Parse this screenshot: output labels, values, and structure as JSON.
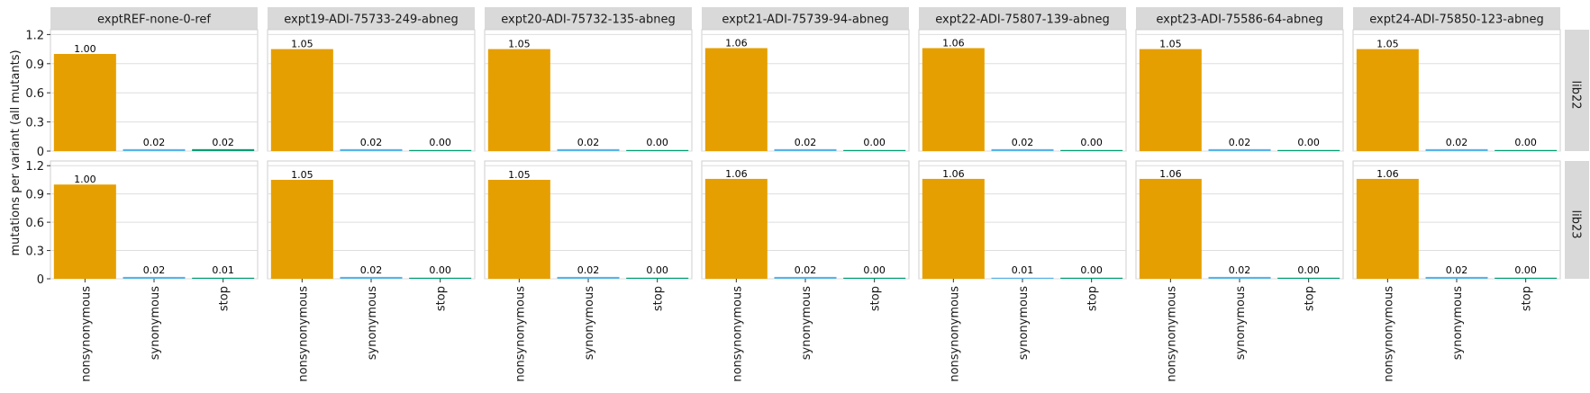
{
  "chart_data": {
    "type": "bar",
    "ylabel": "mutations per variant (all mutants)",
    "xlabel": "",
    "ylim": [
      0,
      1.25
    ],
    "yticks": [
      0,
      0.3,
      0.6,
      0.9,
      1.2
    ],
    "ytick_labels": [
      "0",
      "0.3",
      "0.6",
      "0.9",
      "1.2"
    ],
    "categories": [
      "nonsynonymous",
      "synonymous",
      "stop"
    ],
    "colors": {
      "nonsynonymous": "#E69F00",
      "synonymous": "#56B4E9",
      "stop": "#009E73"
    },
    "grid": true,
    "columns": [
      "exptREF-none-0-ref",
      "expt19-ADI-75733-249-abneg",
      "expt20-ADI-75732-135-abneg",
      "expt21-ADI-75739-94-abneg",
      "expt22-ADI-75807-139-abneg",
      "expt23-ADI-75586-64-abneg",
      "expt24-ADI-75850-123-abneg"
    ],
    "rows": [
      "lib22",
      "lib23"
    ],
    "values": [
      [
        [
          1.0,
          0.02,
          0.02
        ],
        [
          1.05,
          0.02,
          0.0
        ],
        [
          1.05,
          0.02,
          0.0
        ],
        [
          1.06,
          0.02,
          0.0
        ],
        [
          1.06,
          0.02,
          0.0
        ],
        [
          1.05,
          0.02,
          0.0
        ],
        [
          1.05,
          0.02,
          0.0
        ]
      ],
      [
        [
          1.0,
          0.02,
          0.01
        ],
        [
          1.05,
          0.02,
          0.0
        ],
        [
          1.05,
          0.02,
          0.0
        ],
        [
          1.06,
          0.02,
          0.0
        ],
        [
          1.06,
          0.01,
          0.0
        ],
        [
          1.06,
          0.02,
          0.0
        ],
        [
          1.06,
          0.02,
          0.0
        ]
      ]
    ],
    "value_labels": [
      [
        [
          "1.00",
          "0.02",
          "0.02"
        ],
        [
          "1.05",
          "0.02",
          "0.00"
        ],
        [
          "1.05",
          "0.02",
          "0.00"
        ],
        [
          "1.06",
          "0.02",
          "0.00"
        ],
        [
          "1.06",
          "0.02",
          "0.00"
        ],
        [
          "1.05",
          "0.02",
          "0.00"
        ],
        [
          "1.05",
          "0.02",
          "0.00"
        ]
      ],
      [
        [
          "1.00",
          "0.02",
          "0.01"
        ],
        [
          "1.05",
          "0.02",
          "0.00"
        ],
        [
          "1.05",
          "0.02",
          "0.00"
        ],
        [
          "1.06",
          "0.02",
          "0.00"
        ],
        [
          "1.06",
          "0.01",
          "0.00"
        ],
        [
          "1.06",
          "0.02",
          "0.00"
        ],
        [
          "1.06",
          "0.02",
          "0.00"
        ]
      ]
    ]
  }
}
